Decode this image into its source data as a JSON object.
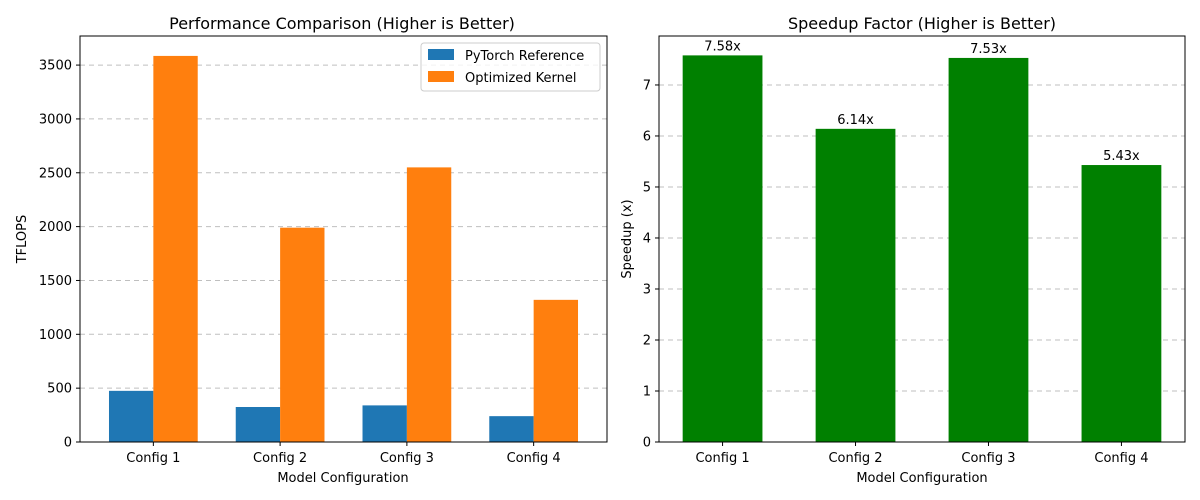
{
  "chart_data": [
    {
      "type": "bar",
      "title": "Performance Comparison (Higher is Better)",
      "xlabel": "Model Configuration",
      "ylabel": "TFLOPS",
      "categories": [
        "Config 1",
        "Config 2",
        "Config 3",
        "Config 4"
      ],
      "series": [
        {
          "name": "PyTorch Reference",
          "color": "#1f77b4",
          "values": [
            475,
            325,
            340,
            240
          ]
        },
        {
          "name": "Optimized Kernel",
          "color": "#ff7f0e",
          "values": [
            3585,
            1990,
            2550,
            1320
          ]
        }
      ],
      "ylim": [
        0,
        3770
      ],
      "yticks": [
        0,
        500,
        1000,
        1500,
        2000,
        2500,
        3000,
        3500
      ],
      "grid": "y",
      "legend_position": "top-right"
    },
    {
      "type": "bar",
      "title": "Speedup Factor (Higher is Better)",
      "xlabel": "Model Configuration",
      "ylabel": "Speedup (x)",
      "categories": [
        "Config 1",
        "Config 2",
        "Config 3",
        "Config 4"
      ],
      "series": [
        {
          "color": "#008000",
          "values": [
            7.58,
            6.14,
            7.53,
            5.43
          ]
        }
      ],
      "data_labels": [
        "7.58x",
        "6.14x",
        "7.53x",
        "5.43x"
      ],
      "ylim": [
        0,
        7.96
      ],
      "yticks": [
        0,
        1,
        2,
        3,
        4,
        5,
        6,
        7
      ],
      "grid": "y"
    }
  ]
}
